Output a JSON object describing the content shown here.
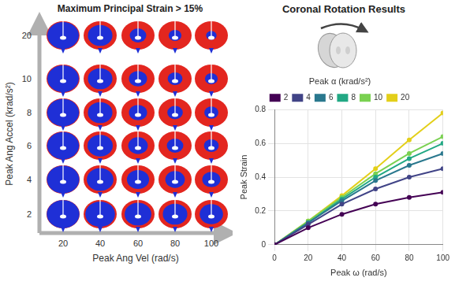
{
  "chart_data": [
    {
      "type": "image_grid",
      "title": "Maximum Principal Strain > 15%",
      "x_label": "Peak Ang Vel (rad/s)",
      "y_label": "Peak Ang Accel (krad/s²)",
      "x": [
        20,
        40,
        60,
        80,
        100
      ],
      "y": [
        2,
        4,
        6,
        8,
        10,
        20
      ],
      "cells": [
        [
          0.03,
          0.2,
          0.35,
          0.45,
          0.5
        ],
        [
          0.05,
          0.35,
          0.55,
          0.65,
          0.7
        ],
        [
          0.08,
          0.42,
          0.65,
          0.75,
          0.8
        ],
        [
          0.08,
          0.45,
          0.7,
          0.78,
          0.82
        ],
        [
          0.1,
          0.45,
          0.7,
          0.8,
          0.85
        ],
        [
          0.1,
          0.45,
          0.75,
          0.85,
          0.9
        ]
      ]
    },
    {
      "type": "line",
      "title": "Coronal Rotation Results",
      "x_label": "Peak ω (rad/s)",
      "y_label": "Peak Strain",
      "legend_title": "Peak α (krad/s²)",
      "legend": "top",
      "grid": true,
      "x": [
        0,
        20,
        40,
        60,
        80,
        100
      ],
      "xlim": [
        0,
        100
      ],
      "xticks": [
        0,
        20,
        40,
        60,
        80,
        100
      ],
      "ylim": [
        0,
        0.8
      ],
      "yticks": [
        0,
        0.2,
        0.4,
        0.6,
        0.8
      ],
      "series": [
        {
          "name": "2",
          "color": "#440154",
          "values": [
            0,
            0.1,
            0.18,
            0.24,
            0.28,
            0.31
          ]
        },
        {
          "name": "4",
          "color": "#414487",
          "values": [
            0,
            0.12,
            0.24,
            0.33,
            0.4,
            0.45
          ]
        },
        {
          "name": "6",
          "color": "#2a788e",
          "values": [
            0,
            0.13,
            0.26,
            0.38,
            0.47,
            0.54
          ]
        },
        {
          "name": "8",
          "color": "#22a884",
          "values": [
            0,
            0.13,
            0.27,
            0.4,
            0.51,
            0.6
          ]
        },
        {
          "name": "10",
          "color": "#7ad151",
          "values": [
            0,
            0.14,
            0.28,
            0.42,
            0.54,
            0.64
          ]
        },
        {
          "name": "20",
          "color": "#e3cf1a",
          "values": [
            0,
            0.14,
            0.29,
            0.45,
            0.62,
            0.78
          ]
        }
      ]
    }
  ]
}
